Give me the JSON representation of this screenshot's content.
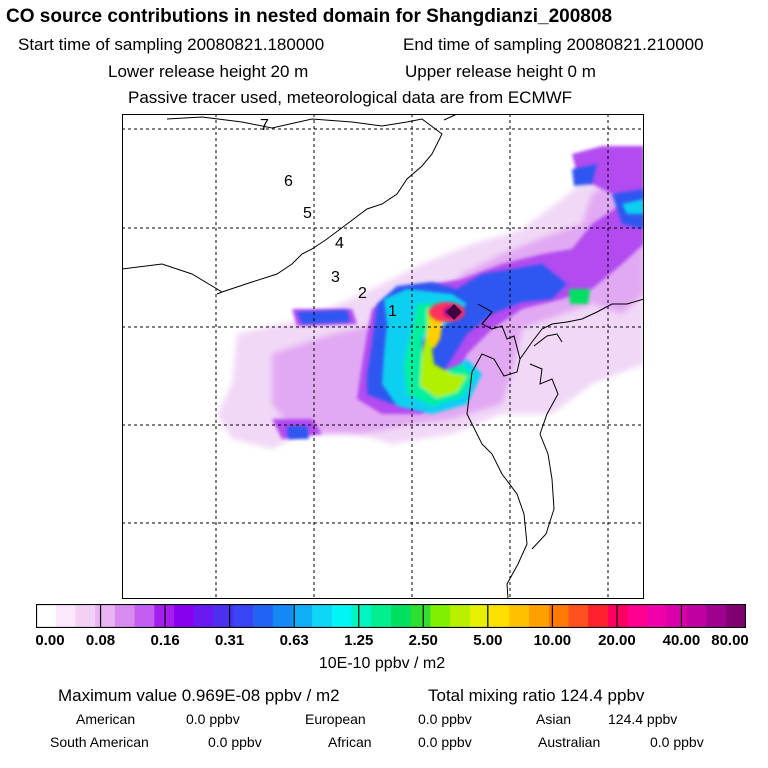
{
  "title": "CO  source contributions in nested domain for Shangdianzi_200808",
  "sampling": {
    "start": "Start time of sampling 20080821.180000",
    "end": "End time of sampling 20080821.210000"
  },
  "release": {
    "lower": "Lower release height   20 m",
    "upper": "Upper release height    0 m"
  },
  "note": "Passive tracer used, meteorological data are from ECMWF",
  "map": {
    "trajectory_labels": [
      "1",
      "2",
      "3",
      "4",
      "5",
      "6",
      "7"
    ]
  },
  "colorbar": {
    "ticks": [
      "0.00",
      "0.08",
      "0.16",
      "0.31",
      "0.63",
      "1.25",
      "2.50",
      "5.00",
      "10.00",
      "20.00",
      "40.00",
      "80.00"
    ],
    "unit": "10E-10 ppbv / m2",
    "colors": [
      "#ffffff",
      "#fbe8fb",
      "#f4d0f6",
      "#eab4f4",
      "#d98cf0",
      "#c35ff0",
      "#a61df0",
      "#8800f0",
      "#6a1af0",
      "#4d2ff0",
      "#3944f5",
      "#2262f5",
      "#1488f5",
      "#10aef5",
      "#0fd6f5",
      "#00f5f5",
      "#00f5c0",
      "#00f090",
      "#00e060",
      "#30e030",
      "#80f000",
      "#b8f000",
      "#e6f000",
      "#ffe000",
      "#ffc000",
      "#ffa000",
      "#ff7a00",
      "#ff5020",
      "#ff2030",
      "#ff0060",
      "#ff0090",
      "#f000a8",
      "#d800a8",
      "#c000a0",
      "#a00090",
      "#800070"
    ]
  },
  "stats": {
    "max": "Maximum value  0.969E-08 ppbv / m2",
    "total": "Total mixing ratio      124.4 ppbv",
    "regions": [
      {
        "name": "American",
        "value": "0.0 ppbv"
      },
      {
        "name": "European",
        "value": "0.0 ppbv"
      },
      {
        "name": "Asian",
        "value": "124.4 ppbv"
      },
      {
        "name": "South American",
        "value": "0.0 ppbv"
      },
      {
        "name": "African",
        "value": "0.0 ppbv"
      },
      {
        "name": "Australian",
        "value": "0.0 ppbv"
      }
    ]
  }
}
